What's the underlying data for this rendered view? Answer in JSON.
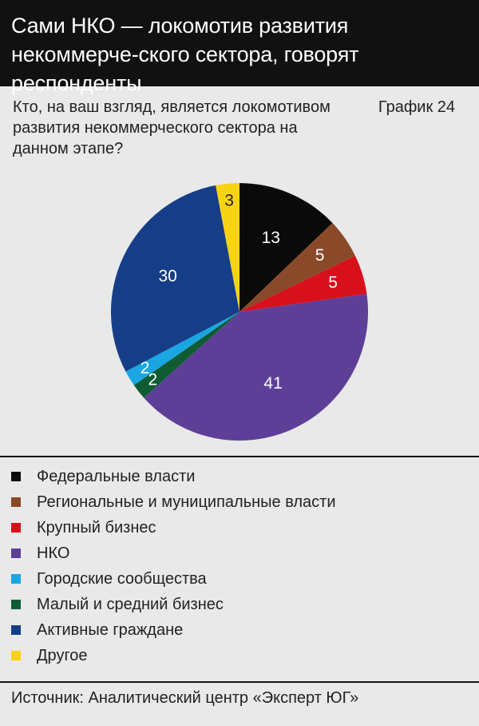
{
  "header": {
    "title": "Сами НКО — локомотив развития некоммерче-ского сектора, говорят респонденты"
  },
  "question": "Кто, на ваш взгляд, является локомотивом развития некоммерческого сектора на данном этапе?",
  "graph_label": "График 24",
  "source": "Источник: Аналитический центр «Эксперт ЮГ»",
  "colors": {
    "background": "#e9e9e9",
    "header_bg": "#111111"
  },
  "chart_data": {
    "type": "pie",
    "start_angle_deg": 0,
    "direction": "clockwise",
    "slices": [
      {
        "label": "Федеральные власти",
        "value": 13,
        "color": "#0a0a0a",
        "label_color": "#ffffff"
      },
      {
        "label": "Региональные и муниципальные власти",
        "value": 5,
        "color": "#8a4a2a",
        "label_color": "#ffffff"
      },
      {
        "label": "Крупный бизнес",
        "value": 5,
        "color": "#d8101c",
        "label_color": "#ffffff"
      },
      {
        "label": "НКО",
        "value": 41,
        "color": "#5e3f98",
        "label_color": "#ffffff"
      },
      {
        "label": "Малый и средний бизнес",
        "value": 2,
        "color": "#0e5c33",
        "label_color": "#ffffff"
      },
      {
        "label": "Городские сообщества",
        "value": 2,
        "color": "#19a6e3",
        "label_color": "#ffffff"
      },
      {
        "label": "Активные граждане",
        "value": 30,
        "color": "#163d87",
        "label_color": "#ffffff"
      },
      {
        "label": "Другое",
        "value": 3,
        "color": "#f7d313",
        "label_color": "#222222"
      }
    ],
    "legend_order": [
      "Федеральные власти",
      "Региональные и муниципальные власти",
      "Крупный бизнес",
      "НКО",
      "Городские сообщества",
      "Малый и средний бизнес",
      "Активные граждане",
      "Другое"
    ]
  }
}
